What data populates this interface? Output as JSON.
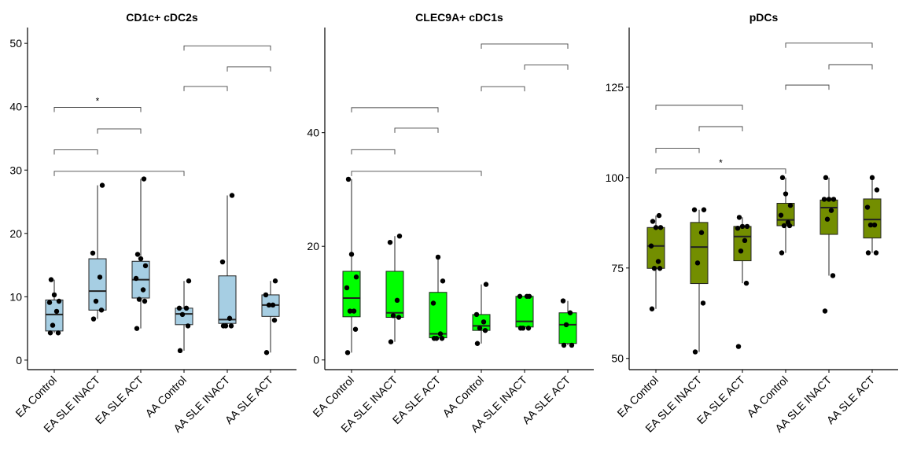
{
  "chart_data": [
    {
      "type": "box",
      "title": "CD1c+ cDC2s",
      "categories": [
        "EA Control",
        "EA SLE INACT",
        "EA SLE ACT",
        "AA Control",
        "AA SLE INACT",
        "AA SLE ACT"
      ],
      "ylim": [
        -1.5,
        52.5
      ],
      "yticks": [
        0,
        10,
        20,
        30,
        40,
        50
      ],
      "fill": "#a6cee3",
      "boxes": [
        {
          "min": 4.3,
          "q1": 4.6,
          "median": 7.2,
          "q3": 9.5,
          "max": 12.7
        },
        {
          "min": 6.5,
          "q1": 7.9,
          "median": 10.9,
          "q3": 16.0,
          "max": 27.6
        },
        {
          "min": 5.0,
          "q1": 9.8,
          "median": 12.7,
          "q3": 15.6,
          "max": 28.6
        },
        {
          "min": 1.5,
          "q1": 5.6,
          "median": 7.3,
          "q3": 8.2,
          "max": 12.5
        },
        {
          "min": 5.4,
          "q1": 5.8,
          "median": 6.4,
          "q3": 13.3,
          "max": 26.0
        },
        {
          "min": 1.2,
          "q1": 6.9,
          "median": 8.7,
          "q3": 10.3,
          "max": 12.5
        }
      ],
      "points": [
        [
          4.3,
          4.3,
          5.5,
          7.7,
          9.1,
          9.3,
          10.3,
          12.7
        ],
        [
          6.5,
          7.9,
          9.3,
          13.1,
          16.9,
          27.6
        ],
        [
          5.0,
          9.3,
          9.6,
          11.1,
          12.9,
          14.9,
          16.0,
          16.7,
          28.6
        ],
        [
          1.5,
          5.4,
          7.2,
          8.2,
          8.2,
          12.5
        ],
        [
          5.4,
          5.4,
          5.4,
          6.6,
          15.5,
          26.0
        ],
        [
          1.2,
          6.3,
          8.7,
          8.7,
          10.3,
          12.5
        ]
      ],
      "comparisons": [
        {
          "from": 0,
          "to": 1,
          "y": 33.2,
          "label": ""
        },
        {
          "from": 0,
          "to": 2,
          "y": 39.9,
          "label": "*"
        },
        {
          "from": 1,
          "to": 2,
          "y": 36.5,
          "label": ""
        },
        {
          "from": 0,
          "to": 3,
          "y": 29.8,
          "label": ""
        },
        {
          "from": 3,
          "to": 4,
          "y": 43.2,
          "label": ""
        },
        {
          "from": 3,
          "to": 5,
          "y": 49.6,
          "label": ""
        },
        {
          "from": 4,
          "to": 5,
          "y": 46.3,
          "label": ""
        }
      ]
    },
    {
      "type": "box",
      "title": "CLEC9A+ cDC1s",
      "categories": [
        "EA Control",
        "EA SLE INACT",
        "EA SLE ACT",
        "AA Control",
        "AA SLE INACT",
        "AA SLE ACT"
      ],
      "ylim": [
        -1.7,
        58.5
      ],
      "yticks": [
        0,
        20,
        40
      ],
      "fill": "#00ff00",
      "boxes": [
        {
          "min": 1.3,
          "q1": 7.6,
          "median": 10.9,
          "q3": 15.6,
          "max": 31.8
        },
        {
          "min": 3.2,
          "q1": 7.5,
          "median": 8.3,
          "q3": 15.6,
          "max": 21.8
        },
        {
          "min": 3.8,
          "q1": 3.9,
          "median": 4.6,
          "q3": 11.9,
          "max": 18.1
        },
        {
          "min": 2.9,
          "q1": 5.2,
          "median": 6.0,
          "q3": 8.0,
          "max": 13.3
        },
        {
          "min": 5.6,
          "q1": 5.8,
          "median": 6.8,
          "q3": 11.2,
          "max": 11.2
        },
        {
          "min": 2.6,
          "q1": 2.9,
          "median": 6.2,
          "q3": 8.3,
          "max": 10.4
        }
      ],
      "points": [
        [
          1.3,
          5.4,
          8.6,
          8.6,
          12.7,
          14.6,
          18.6,
          31.8
        ],
        [
          3.2,
          7.5,
          7.8,
          10.5,
          20.7,
          21.8
        ],
        [
          3.8,
          3.8,
          3.8,
          4.6,
          10.0,
          13.9,
          18.1
        ],
        [
          2.9,
          5.2,
          5.6,
          6.7,
          8.0,
          13.3
        ],
        [
          5.6,
          5.6,
          5.6,
          11.2,
          11.2,
          11.2
        ],
        [
          2.6,
          2.6,
          6.2,
          8.3,
          10.4
        ]
      ],
      "comparisons": [
        {
          "from": 0,
          "to": 1,
          "y": 37.0,
          "label": ""
        },
        {
          "from": 0,
          "to": 2,
          "y": 44.4,
          "label": ""
        },
        {
          "from": 1,
          "to": 2,
          "y": 40.8,
          "label": ""
        },
        {
          "from": 0,
          "to": 3,
          "y": 33.2,
          "label": ""
        },
        {
          "from": 3,
          "to": 4,
          "y": 48.1,
          "label": ""
        },
        {
          "from": 3,
          "to": 5,
          "y": 55.6,
          "label": ""
        },
        {
          "from": 4,
          "to": 5,
          "y": 51.9,
          "label": ""
        }
      ]
    },
    {
      "type": "box",
      "title": "pDCs",
      "categories": [
        "EA Control",
        "EA SLE INACT",
        "EA SLE ACT",
        "AA Control",
        "AA SLE INACT",
        "AA SLE ACT"
      ],
      "ylim": [
        46.9,
        141.5
      ],
      "yticks": [
        50,
        75,
        100,
        125
      ],
      "fill": "#738e00",
      "boxes": [
        {
          "min": 63.7,
          "q1": 74.9,
          "median": 81.1,
          "q3": 86.2,
          "max": 89.5
        },
        {
          "min": 51.8,
          "q1": 70.7,
          "median": 80.8,
          "q3": 87.6,
          "max": 91.1
        },
        {
          "min": 70.8,
          "q1": 77.0,
          "median": 83.7,
          "q3": 86.5,
          "max": 89.0
        },
        {
          "min": 79.2,
          "q1": 86.7,
          "median": 88.3,
          "q3": 92.9,
          "max": 100.0
        },
        {
          "min": 72.9,
          "q1": 84.3,
          "median": 91.7,
          "q3": 93.8,
          "max": 100.0
        },
        {
          "min": 79.2,
          "q1": 83.3,
          "median": 88.4,
          "q3": 94.1,
          "max": 100.0
        }
      ],
      "points": [
        [
          63.7,
          74.9,
          74.9,
          76.8,
          81.1,
          86.2,
          86.2,
          87.9,
          89.5
        ],
        [
          51.8,
          65.3,
          76.4,
          84.8,
          91.1,
          91.1
        ],
        [
          53.3,
          70.8,
          79.7,
          82.6,
          86.0,
          86.5,
          86.5,
          89.0
        ],
        [
          79.2,
          86.7,
          86.7,
          87.6,
          89.6,
          92.3,
          95.5,
          100.0
        ],
        [
          63.1,
          72.9,
          88.5,
          90.9,
          94.0,
          94.0,
          94.0,
          100.0
        ],
        [
          79.2,
          79.2,
          86.9,
          86.9,
          91.8,
          96.6,
          100.0
        ]
      ],
      "comparisons": [
        {
          "from": 0,
          "to": 1,
          "y": 108.1,
          "label": ""
        },
        {
          "from": 0,
          "to": 2,
          "y": 120.0,
          "label": ""
        },
        {
          "from": 1,
          "to": 2,
          "y": 114.1,
          "label": ""
        },
        {
          "from": 0,
          "to": 3,
          "y": 102.4,
          "label": "*"
        },
        {
          "from": 3,
          "to": 4,
          "y": 125.6,
          "label": ""
        },
        {
          "from": 3,
          "to": 5,
          "y": 137.2,
          "label": ""
        },
        {
          "from": 4,
          "to": 5,
          "y": 131.2,
          "label": ""
        }
      ]
    }
  ]
}
